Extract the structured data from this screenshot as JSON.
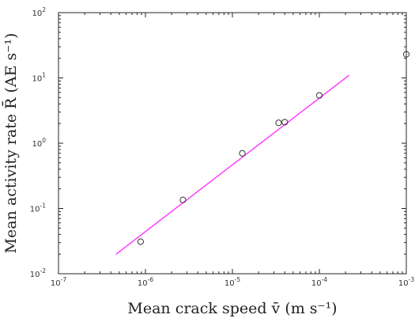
{
  "chart_data": {
    "type": "scatter",
    "xscale": "log",
    "yscale": "log",
    "xlim": [
      1e-07,
      0.001
    ],
    "ylim": [
      0.01,
      100
    ],
    "grid": false,
    "xlabel": "Mean crack speed v̄ (m s⁻¹)",
    "ylabel": "Mean activity rate R̄ (AE s⁻¹)",
    "x_ticks": [
      {
        "value": 1e-07,
        "base": "10",
        "exp": "-7"
      },
      {
        "value": 1e-06,
        "base": "10",
        "exp": "-6"
      },
      {
        "value": 1e-05,
        "base": "10",
        "exp": "-5"
      },
      {
        "value": 0.0001,
        "base": "10",
        "exp": "-4"
      },
      {
        "value": 0.001,
        "base": "10",
        "exp": "-3"
      }
    ],
    "y_ticks": [
      {
        "value": 0.01,
        "base": "10",
        "exp": "-2"
      },
      {
        "value": 0.1,
        "base": "10",
        "exp": "-1"
      },
      {
        "value": 1,
        "base": "10",
        "exp": "0"
      },
      {
        "value": 10,
        "base": "10",
        "exp": "1"
      },
      {
        "value": 100,
        "base": "10",
        "exp": "2"
      }
    ],
    "series": [
      {
        "type": "scatter",
        "marker": "circle-open",
        "color": "#333333",
        "points": [
          [
            8.8e-07,
            0.031
          ],
          [
            2.7e-06,
            0.135
          ],
          [
            1.3e-05,
            0.7
          ],
          [
            3.4e-05,
            2.05
          ],
          [
            4e-05,
            2.1
          ],
          [
            0.0001,
            5.4
          ],
          [
            0.001,
            23.0
          ]
        ]
      },
      {
        "type": "line",
        "color": "#ff33ff",
        "points": [
          [
            4.6e-07,
            0.02
          ],
          [
            0.00022,
            11.0
          ]
        ]
      }
    ]
  }
}
